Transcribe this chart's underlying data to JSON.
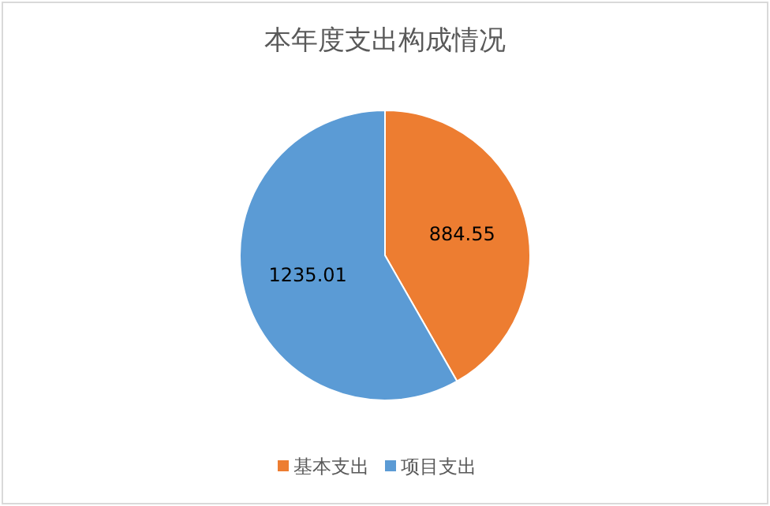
{
  "chart_data": {
    "type": "pie",
    "title": "本年度支出构成情况",
    "categories": [
      "基本支出",
      "项目支出"
    ],
    "values": [
      884.55,
      1235.01
    ],
    "colors": [
      "#ed7d31",
      "#5b9bd5"
    ],
    "data_labels": true,
    "legend": "bottom"
  }
}
